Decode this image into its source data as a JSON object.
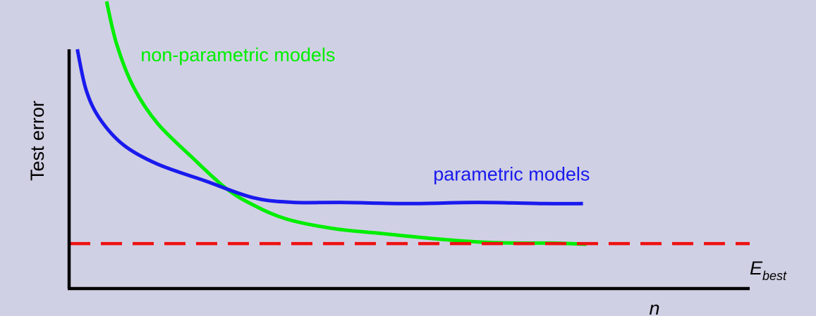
{
  "chart_data": {
    "type": "line",
    "title": "",
    "xlabel": "n",
    "ylabel": "Test error",
    "xlim": [
      0,
      10
    ],
    "ylim": [
      0,
      10
    ],
    "grid": false,
    "legend": "none",
    "series": [
      {
        "name": "non-parametric models",
        "color": "#00ee00",
        "x": [
          0.55,
          0.7,
          0.95,
          1.3,
          1.8,
          2.3,
          2.7,
          3.2,
          3.9,
          4.6,
          5.3,
          6.0,
          6.6,
          7.1,
          7.6
        ],
        "y": [
          12.0,
          10.2,
          8.4,
          6.9,
          5.5,
          4.2,
          3.5,
          2.9,
          2.5,
          2.3,
          2.1,
          1.95,
          1.9,
          1.9,
          1.85
        ]
      },
      {
        "name": "parametric models",
        "color": "#1a1aee",
        "x": [
          0.12,
          0.25,
          0.45,
          0.8,
          1.3,
          2.0,
          2.7,
          3.3,
          4.0,
          5.0,
          6.0,
          7.0,
          7.55
        ],
        "y": [
          10.0,
          8.3,
          7.1,
          6.0,
          5.2,
          4.5,
          3.8,
          3.6,
          3.6,
          3.55,
          3.6,
          3.55,
          3.55
        ]
      }
    ],
    "reference_line": {
      "name": "E_best",
      "label_main": "E",
      "label_sub": "best",
      "y": 1.88,
      "color": "#ee1111"
    },
    "annotations": [
      {
        "series": 0,
        "text": "non-parametric models",
        "x": 1.05,
        "y": 9.5
      },
      {
        "series": 1,
        "text": "parametric models",
        "x": 5.35,
        "y": 4.52
      }
    ]
  }
}
